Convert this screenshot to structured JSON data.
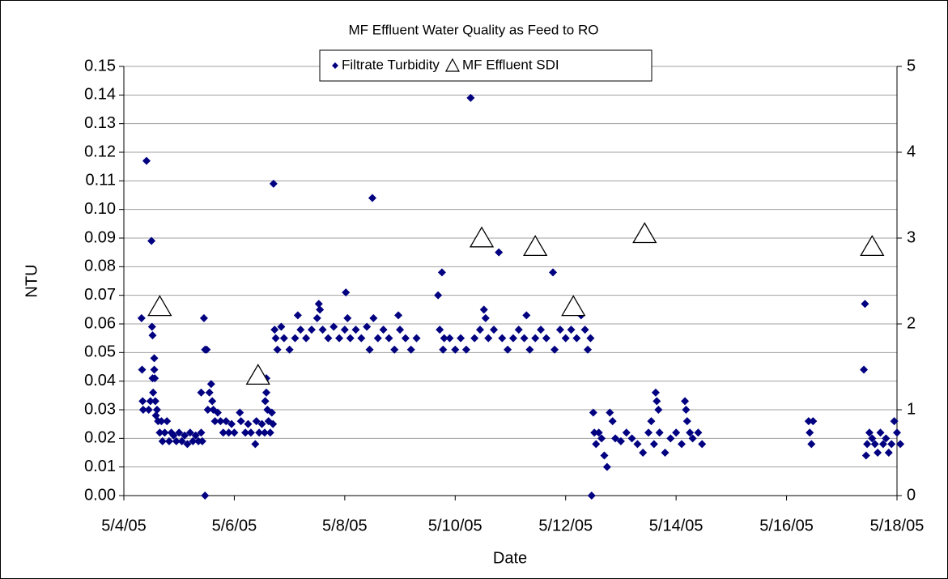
{
  "chart_data": {
    "type": "scatter",
    "title": "MF Effluent Water Quality as Feed to RO",
    "x_label": "Date",
    "y_label": "NTU",
    "xlim": [
      38476,
      38490
    ],
    "xticks": [
      {
        "value": 38476,
        "label": "5/4/05"
      },
      {
        "value": 38478,
        "label": "5/6/05"
      },
      {
        "value": 38480,
        "label": "5/8/05"
      },
      {
        "value": 38482,
        "label": "5/10/05"
      },
      {
        "value": 38484,
        "label": "5/12/05"
      },
      {
        "value": 38486,
        "label": "5/14/05"
      },
      {
        "value": 38488,
        "label": "5/16/05"
      },
      {
        "value": 38490,
        "label": "5/18/05"
      }
    ],
    "ylim": [
      0,
      0.15
    ],
    "yticks": [
      {
        "value": 0,
        "label": "0.00"
      },
      {
        "value": 0.01,
        "label": "0.01"
      },
      {
        "value": 0.02,
        "label": "0.02"
      },
      {
        "value": 0.03,
        "label": "0.03"
      },
      {
        "value": 0.04,
        "label": "0.04"
      },
      {
        "value": 0.05,
        "label": "0.05"
      },
      {
        "value": 0.06,
        "label": "0.06"
      },
      {
        "value": 0.07,
        "label": "0.07"
      },
      {
        "value": 0.08,
        "label": "0.08"
      },
      {
        "value": 0.09,
        "label": "0.09"
      },
      {
        "value": 0.1,
        "label": "0.10"
      },
      {
        "value": 0.11,
        "label": "0.11"
      },
      {
        "value": 0.12,
        "label": "0.12"
      },
      {
        "value": 0.13,
        "label": "0.13"
      },
      {
        "value": 0.14,
        "label": "0.14"
      },
      {
        "value": 0.15,
        "label": "0.15"
      }
    ],
    "y2lim": [
      0,
      5
    ],
    "y2ticks": [
      0,
      1,
      2,
      3,
      4,
      5
    ],
    "grid": true,
    "legend": "top",
    "series": [
      {
        "name": "Filtrate Turbidity",
        "color": "#000080",
        "marker": "diamond",
        "x": [
          38476.32,
          38476.33,
          38476.34,
          38476.35,
          38476.41,
          38476.45,
          38476.48,
          38476.5,
          38476.51,
          38476.52,
          38476.52,
          38476.53,
          38476.55,
          38476.55,
          38476.56,
          38476.57,
          38476.58,
          38476.6,
          38476.62,
          38476.65,
          38476.68,
          38476.7,
          38476.74,
          38476.78,
          38476.82,
          38476.86,
          38476.9,
          38476.95,
          38477,
          38477.05,
          38477.1,
          38477.15,
          38477.2,
          38477.25,
          38477.3,
          38477.35,
          38477.4,
          38477.42,
          38477.4,
          38477.45,
          38477.47,
          38477.47,
          38477.5,
          38477.52,
          38477.55,
          38477.58,
          38477.6,
          38477.62,
          38477.65,
          38477.7,
          38477.75,
          38477.8,
          38477.85,
          38477.9,
          38477.95,
          38478,
          38478.1,
          38478.12,
          38478.2,
          38478.25,
          38478.3,
          38478.38,
          38478.4,
          38478.45,
          38478.5,
          38478.55,
          38478.56,
          38478.58,
          38478.58,
          38478.6,
          38478.62,
          38478.65,
          38478.68,
          38478.7,
          38478.71,
          38478.73,
          38478.75,
          38478.78,
          38478.85,
          38478.9,
          38479,
          38479.1,
          38479.15,
          38479.2,
          38479.3,
          38479.4,
          38479.5,
          38479.53,
          38479.55,
          38479.6,
          38479.7,
          38479.8,
          38479.9,
          38480,
          38480.02,
          38480.05,
          38480.1,
          38480.2,
          38480.3,
          38480.4,
          38480.45,
          38480.5,
          38480.52,
          38480.6,
          38480.7,
          38480.8,
          38480.9,
          38480.97,
          38481,
          38481.1,
          38481.2,
          38481.3,
          38481.69,
          38481.72,
          38481.76,
          38481.78,
          38481.8,
          38481.9,
          38482,
          38482.1,
          38482.2,
          38482.28,
          38482.35,
          38482.45,
          38482.52,
          38482.55,
          38482.6,
          38482.7,
          38482.79,
          38482.85,
          38482.95,
          38483.05,
          38483.15,
          38483.25,
          38483.29,
          38483.35,
          38483.45,
          38483.55,
          38483.65,
          38483.77,
          38483.8,
          38483.9,
          38484,
          38484.1,
          38484.2,
          38484.28,
          38484.35,
          38484.4,
          38484.45,
          38484.47,
          38484.5,
          38484.52,
          38484.55,
          38484.6,
          38484.65,
          38484.7,
          38484.75,
          38484.8,
          38484.85,
          38484.9,
          38485,
          38485.1,
          38485.2,
          38485.3,
          38485.4,
          38485.5,
          38485.55,
          38485.6,
          38485.63,
          38485.65,
          38485.68,
          38485.7,
          38485.8,
          38485.9,
          38486,
          38486.1,
          38486.16,
          38486.18,
          38486.2,
          38486.25,
          38486.3,
          38486.4,
          38486.47,
          38488.4,
          38488.42,
          38488.45,
          38488.48,
          38489.4,
          38489.42,
          38489.44,
          38489.46,
          38489.5,
          38489.55,
          38489.6,
          38489.65,
          38489.7,
          38489.75,
          38489.8,
          38489.85,
          38489.9,
          38489.95,
          38490,
          38490.06
        ],
        "values": [
          0.062,
          0.044,
          0.033,
          0.03,
          0.117,
          0.03,
          0.033,
          0.089,
          0.059,
          0.056,
          0.041,
          0.036,
          0.048,
          0.044,
          0.041,
          0.033,
          0.028,
          0.03,
          0.026,
          0.022,
          0.026,
          0.019,
          0.022,
          0.026,
          0.019,
          0.022,
          0.021,
          0.019,
          0.022,
          0.019,
          0.021,
          0.018,
          0.022,
          0.019,
          0.021,
          0.019,
          0.022,
          0.019,
          0.036,
          0.062,
          0,
          0.051,
          0.051,
          0.03,
          0.036,
          0.039,
          0.033,
          0.03,
          0.026,
          0.029,
          0.026,
          0.022,
          0.026,
          0.022,
          0.025,
          0.022,
          0.029,
          0.026,
          0.022,
          0.025,
          0.022,
          0.018,
          0.026,
          0.022,
          0.025,
          0.022,
          0.033,
          0.041,
          0.036,
          0.03,
          0.026,
          0.022,
          0.029,
          0.025,
          0.109,
          0.058,
          0.055,
          0.051,
          0.059,
          0.055,
          0.051,
          0.055,
          0.063,
          0.058,
          0.055,
          0.058,
          0.062,
          0.067,
          0.065,
          0.058,
          0.055,
          0.059,
          0.055,
          0.058,
          0.071,
          0.062,
          0.055,
          0.058,
          0.055,
          0.059,
          0.051,
          0.104,
          0.062,
          0.055,
          0.058,
          0.055,
          0.051,
          0.063,
          0.058,
          0.055,
          0.051,
          0.055,
          0.07,
          0.058,
          0.078,
          0.051,
          0.055,
          0.055,
          0.051,
          0.055,
          0.051,
          0.139,
          0.055,
          0.058,
          0.065,
          0.062,
          0.055,
          0.058,
          0.085,
          0.055,
          0.051,
          0.055,
          0.058,
          0.055,
          0.063,
          0.051,
          0.055,
          0.058,
          0.055,
          0.078,
          0.051,
          0.058,
          0.055,
          0.058,
          0.055,
          0.063,
          0.058,
          0.051,
          0.055,
          0,
          0.029,
          0.022,
          0.018,
          0.022,
          0.02,
          0.014,
          0.01,
          0.029,
          0.026,
          0.02,
          0.019,
          0.022,
          0.02,
          0.018,
          0.015,
          0.022,
          0.026,
          0.018,
          0.036,
          0.033,
          0.03,
          0.022,
          0.015,
          0.02,
          0.022,
          0.018,
          0.033,
          0.03,
          0.026,
          0.022,
          0.02,
          0.022,
          0.018,
          0.026,
          0.022,
          0.018,
          0.026,
          0.044,
          0.067,
          0.014,
          0.018,
          0.022,
          0.02,
          0.018,
          0.015,
          0.022,
          0.018,
          0.02,
          0.015,
          0.018,
          0.026,
          0.022,
          0.018
        ]
      },
      {
        "name": "MF Effluent SDI",
        "color": "#000000",
        "marker": "triangle",
        "axis": "y2",
        "x": [
          38476.65,
          38478.43,
          38482.48,
          38483.45,
          38484.14,
          38485.43,
          38489.55
        ],
        "values": [
          2.2,
          1.4,
          3.0,
          2.9,
          2.2,
          3.05,
          2.9
        ]
      }
    ]
  }
}
